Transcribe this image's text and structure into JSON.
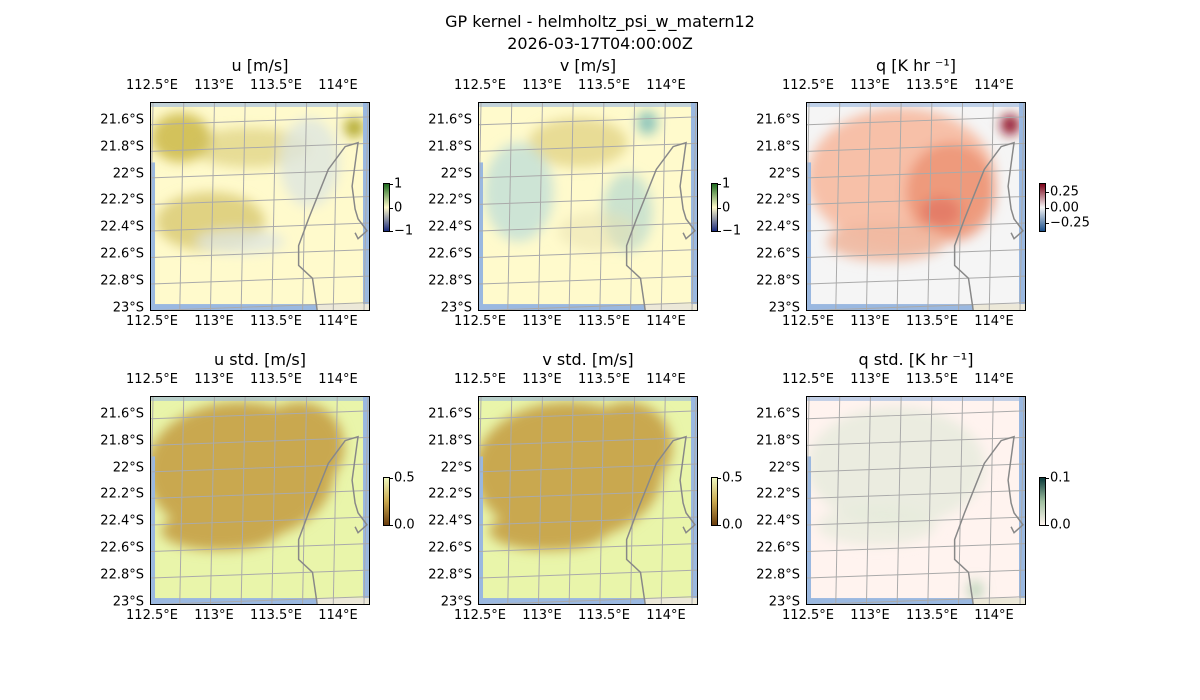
{
  "figure": {
    "title": "GP kernel - helmholtz_psi_w_matern12",
    "subtitle": "2026-03-17T04:00:00Z"
  },
  "chart_data": {
    "type": "heatmap",
    "lon_ticks": [
      "112.5°E",
      "113°E",
      "113.5°E",
      "114°E"
    ],
    "lon_values": [
      112.5,
      113,
      113.5,
      114
    ],
    "lat_ticks": [
      "21.6°S",
      "21.8°S",
      "22°S",
      "22.2°S",
      "22.4°S",
      "22.6°S",
      "22.8°S",
      "23°S"
    ],
    "lat_values": [
      21.6,
      21.8,
      22.0,
      22.2,
      22.4,
      22.6,
      22.8,
      23.0
    ],
    "grid": true,
    "panels": [
      {
        "id": "u",
        "title": "u [m/s]",
        "colorbar": {
          "range": [
            -1,
            1
          ],
          "ticks": [
            "1",
            "0",
            "−1"
          ],
          "tick_values": [
            1,
            0,
            -1
          ],
          "colors": [
            "#1a2a7a",
            "#fffacc",
            "#1e6b1e"
          ]
        },
        "background": "#fffacc"
      },
      {
        "id": "v",
        "title": "v [m/s]",
        "colorbar": {
          "range": [
            -1,
            1
          ],
          "ticks": [
            "1",
            "0",
            "−1"
          ],
          "tick_values": [
            1,
            0,
            -1
          ],
          "colors": [
            "#1a2a7a",
            "#fffacc",
            "#1e6b1e"
          ]
        },
        "background": "#fffacc"
      },
      {
        "id": "q",
        "title": "q [K hr ⁻¹]",
        "colorbar": {
          "range": [
            -0.375,
            0.375
          ],
          "ticks": [
            "0.25",
            "0.00",
            "−0.25"
          ],
          "tick_values": [
            0.25,
            0,
            -0.25
          ],
          "colors": [
            "#1a4e8a",
            "#f5f5f5",
            "#7a0016"
          ]
        },
        "background": "#f5f5f5"
      },
      {
        "id": "u_std",
        "title": "u std. [m/s]",
        "colorbar": {
          "range": [
            0,
            0.5
          ],
          "ticks": [
            "0.5",
            "0.0"
          ],
          "tick_values": [
            0.5,
            0
          ],
          "colors": [
            "#6b3e0e",
            "#c9a84f",
            "#f0f8c0"
          ]
        },
        "background": "#e9f5aa"
      },
      {
        "id": "v_std",
        "title": "v std. [m/s]",
        "colorbar": {
          "range": [
            0,
            0.5
          ],
          "ticks": [
            "0.5",
            "0.0"
          ],
          "tick_values": [
            0.5,
            0
          ],
          "colors": [
            "#6b3e0e",
            "#c9a84f",
            "#f0f8c0"
          ]
        },
        "background": "#e9f5aa"
      },
      {
        "id": "q_std",
        "title": "q std. [K hr ⁻¹]",
        "colorbar": {
          "range": [
            0,
            0.1
          ],
          "ticks": [
            "0.1",
            "0.0"
          ],
          "tick_values": [
            0.1,
            0
          ],
          "colors": [
            "#fff5f0",
            "#a0c0a0",
            "#0a3a3a"
          ]
        },
        "background": "#fff3ef"
      }
    ]
  }
}
